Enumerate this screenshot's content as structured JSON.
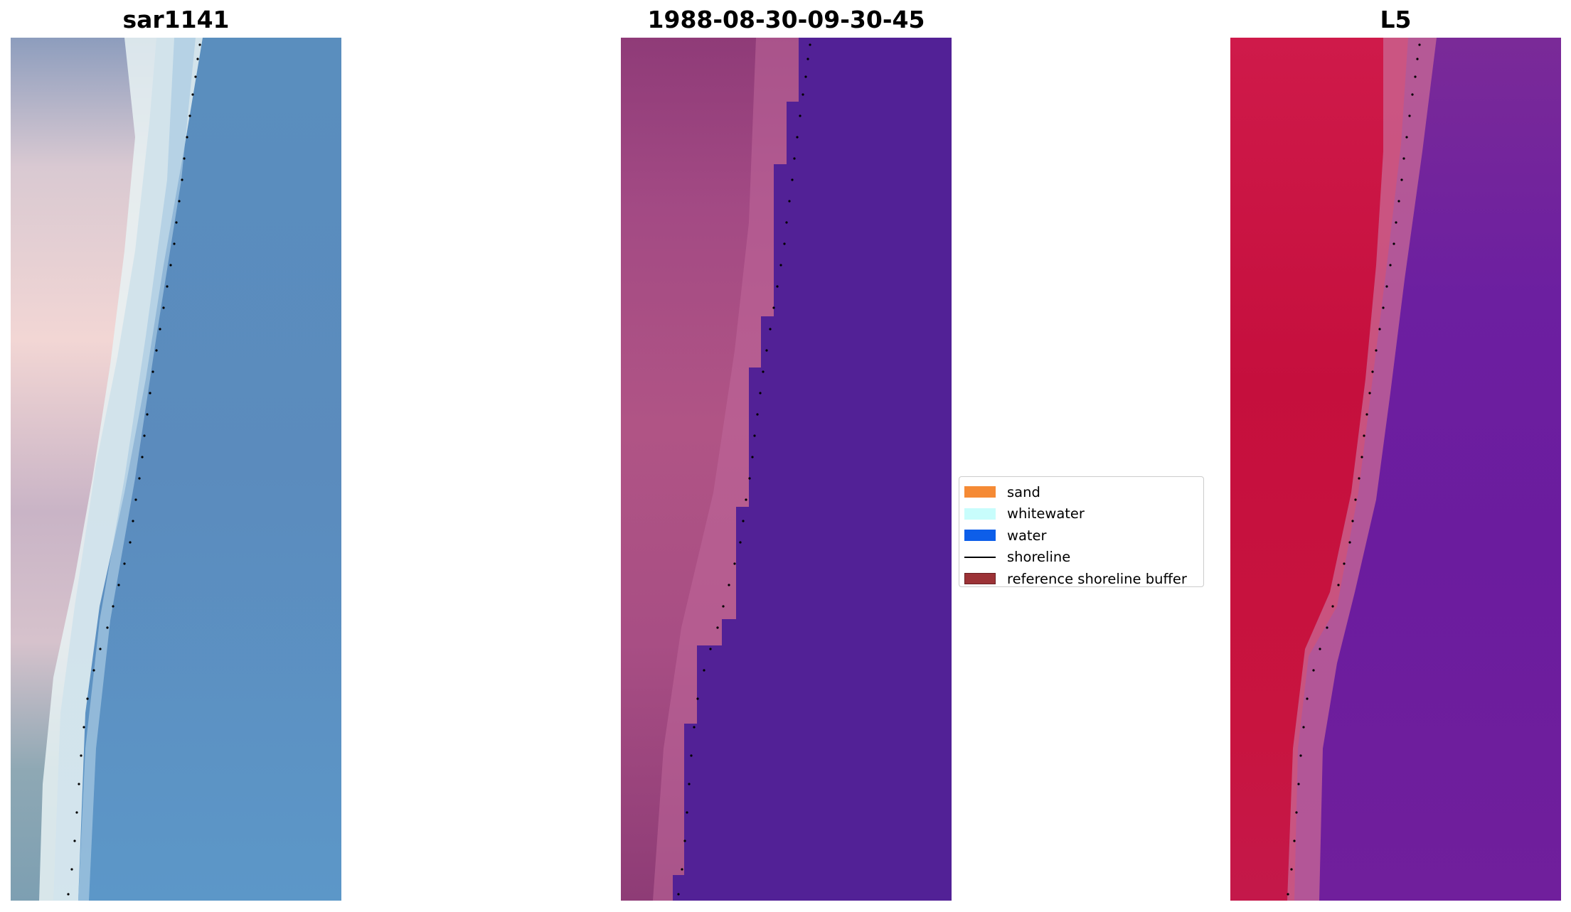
{
  "panels": [
    {
      "title": "sar1141"
    },
    {
      "title": "1988-08-30-09-30-45"
    },
    {
      "title": "L5"
    }
  ],
  "legend": {
    "items": [
      {
        "label": "sand",
        "kind": "patch",
        "color": "#f58a35"
      },
      {
        "label": "whitewater",
        "kind": "patch",
        "color": "#c8fdfc"
      },
      {
        "label": "water",
        "kind": "patch",
        "color": "#0d5ee9"
      },
      {
        "label": "shoreline",
        "kind": "line",
        "color": "#000000"
      },
      {
        "label": "reference shoreline buffer",
        "kind": "patch",
        "color": "#9c3236"
      }
    ]
  },
  "colors": {
    "water_rgb": "#5a8cbc",
    "classified_water": "#522196",
    "classified_land": "#9e4a84",
    "index_land": "#c40f3c",
    "index_water": "#6e1aa0"
  }
}
